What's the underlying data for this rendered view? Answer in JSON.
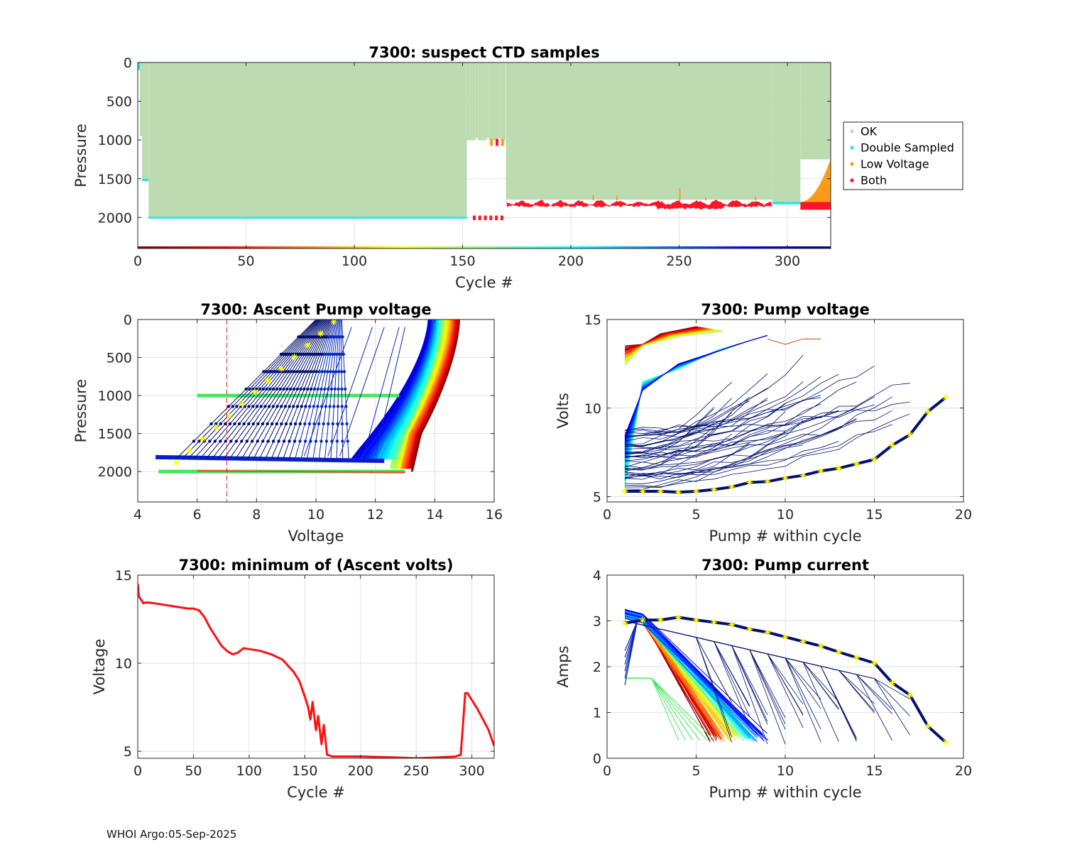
{
  "footer": "WHOI Argo:05-Sep-2025",
  "chart_data": [
    {
      "id": "suspect",
      "type": "scatter",
      "title": "7300: suspect CTD samples",
      "xlabel": "Cycle #",
      "ylabel": "Pressure",
      "xlim": [
        0,
        320
      ],
      "ylim": [
        0,
        2400
      ],
      "y_reversed": true,
      "xticks": [
        0,
        50,
        100,
        150,
        200,
        250,
        300
      ],
      "yticks": [
        0,
        500,
        1000,
        1500,
        2000
      ],
      "legend": {
        "position": "outside-right",
        "entries": [
          {
            "label": "OK",
            "color": "#bddbb0"
          },
          {
            "label": "Double Sampled",
            "color": "#1de6f0"
          },
          {
            "label": "Low Voltage",
            "color": "#ff9a1a"
          },
          {
            "label": "Both",
            "color": "#ff1428"
          }
        ]
      },
      "segments": [
        {
          "from": 0,
          "to": 1,
          "ok_to": 50,
          "bottom": 60,
          "flag": "Double Sampled"
        },
        {
          "from": 1,
          "to": 5,
          "ok_to": 1500,
          "bottom": 1530,
          "flag": "Double Sampled"
        },
        {
          "from": 5,
          "to": 152,
          "ok_to": 1990,
          "bottom": 2015,
          "flag": "Double Sampled"
        },
        {
          "from": 152,
          "to": 170,
          "ok_to": 1000,
          "bottom": 2010,
          "flag": "gap"
        },
        {
          "from": 170,
          "to": 293,
          "ok_to": 1770,
          "bottom": 1870,
          "flag": "Both"
        },
        {
          "from": 293,
          "to": 306,
          "ok_to": 1800,
          "bottom": 1830,
          "flag": "Double Sampled"
        },
        {
          "from": 306,
          "to": 320,
          "ok_to": 1250,
          "bottom": 1900,
          "flag": "Low Voltage"
        }
      ],
      "cycle_colorbar_pressure": 2400
    },
    {
      "id": "ascent",
      "type": "line",
      "title": "7300: Ascent Pump voltage",
      "xlabel": "Voltage",
      "ylabel": "Pressure",
      "xlim": [
        4,
        16
      ],
      "ylim": [
        0,
        2400
      ],
      "y_reversed": true,
      "xticks": [
        4,
        6,
        8,
        10,
        12,
        14,
        16
      ],
      "yticks": [
        0,
        500,
        1000,
        1500,
        2000
      ],
      "threshold_voltage": 7,
      "green_lines": [
        {
          "pressure": 1000,
          "v_from": 6.0,
          "v_to": 12.8
        },
        {
          "pressure": 2000,
          "v_from": 4.7,
          "v_to": 13.0
        }
      ],
      "profile_groups": [
        {
          "cycles": "1-150",
          "v_surface": [
            14.2,
            14.8
          ],
          "v_knee": [
            12.9,
            13.5
          ],
          "knee_pressure": 1500,
          "bottom_pressure": 2000
        },
        {
          "cycles": "170-290",
          "v_surface": [
            13.8,
            14.3
          ],
          "v_knee": [
            11.5,
            12.9
          ],
          "knee_pressure": 1550,
          "bottom_pressure": 1850
        },
        {
          "cycles": "290-320",
          "v_surface": [
            10.0,
            13.0
          ],
          "v_bottom": [
            5.3,
            10.5
          ],
          "bottom_pressure": 1850
        }
      ]
    },
    {
      "id": "pumpv",
      "type": "line",
      "title": "7300: Pump voltage",
      "xlabel": "Pump # within cycle",
      "ylabel": "Volts",
      "xlim": [
        0,
        20
      ],
      "ylim": [
        4.7,
        15
      ],
      "xticks": [
        0,
        5,
        10,
        15,
        20
      ],
      "yticks": [
        5,
        10,
        15
      ],
      "highlight_profile": {
        "pump": [
          1,
          2,
          3,
          4,
          5,
          6,
          7,
          8,
          9,
          10,
          11,
          12,
          13,
          14,
          15,
          16,
          17,
          18,
          19
        ],
        "volts": [
          5.3,
          5.3,
          5.3,
          5.25,
          5.3,
          5.4,
          5.55,
          5.8,
          5.85,
          6.05,
          6.2,
          6.45,
          6.6,
          6.85,
          7.1,
          7.9,
          8.5,
          9.8,
          10.6
        ]
      }
    },
    {
      "id": "minv",
      "type": "line",
      "title": "7300: minimum of (Ascent volts)",
      "xlabel": "Cycle #",
      "ylabel": "Voltage",
      "xlim": [
        0,
        320
      ],
      "ylim": [
        4.6,
        15
      ],
      "xticks": [
        0,
        50,
        100,
        150,
        200,
        250,
        300
      ],
      "yticks": [
        5,
        10,
        15
      ],
      "x": [
        0,
        1,
        3,
        5,
        8,
        15,
        25,
        35,
        45,
        50,
        55,
        60,
        65,
        70,
        75,
        80,
        85,
        90,
        95,
        100,
        110,
        120,
        130,
        140,
        145,
        150,
        153,
        155,
        157,
        160,
        162,
        165,
        167,
        170,
        175,
        200,
        230,
        250,
        270,
        285,
        290,
        292,
        294,
        296,
        300,
        305,
        310,
        315,
        320
      ],
      "y": [
        14.5,
        13.8,
        13.6,
        13.4,
        13.45,
        13.4,
        13.3,
        13.2,
        13.1,
        13.1,
        13.0,
        12.6,
        12.0,
        11.5,
        11.0,
        10.7,
        10.5,
        10.6,
        10.85,
        10.8,
        10.7,
        10.5,
        10.2,
        9.5,
        9.0,
        8.1,
        7.5,
        6.8,
        7.8,
        6.2,
        7.0,
        5.4,
        6.5,
        4.8,
        4.7,
        4.7,
        4.65,
        4.6,
        4.65,
        4.7,
        4.8,
        6.5,
        8.3,
        8.3,
        7.9,
        7.4,
        6.8,
        6.2,
        5.3
      ]
    },
    {
      "id": "pumpi",
      "type": "line",
      "title": "7300: Pump current",
      "xlabel": "Pump # within cycle",
      "ylabel": "Amps",
      "xlim": [
        0,
        20
      ],
      "ylim": [
        0,
        4
      ],
      "xticks": [
        0,
        5,
        10,
        15,
        20
      ],
      "yticks": [
        0,
        1,
        2,
        3,
        4
      ],
      "highlight_profile": {
        "pump": [
          1,
          2,
          3,
          4,
          5,
          6,
          7,
          8,
          9,
          10,
          11,
          12,
          13,
          14,
          15,
          16,
          17,
          18,
          19
        ],
        "amps": [
          2.95,
          3.02,
          3.02,
          3.08,
          3.02,
          2.97,
          2.92,
          2.82,
          2.75,
          2.65,
          2.55,
          2.45,
          2.32,
          2.2,
          2.08,
          1.65,
          1.38,
          0.7,
          0.35
        ]
      }
    }
  ]
}
